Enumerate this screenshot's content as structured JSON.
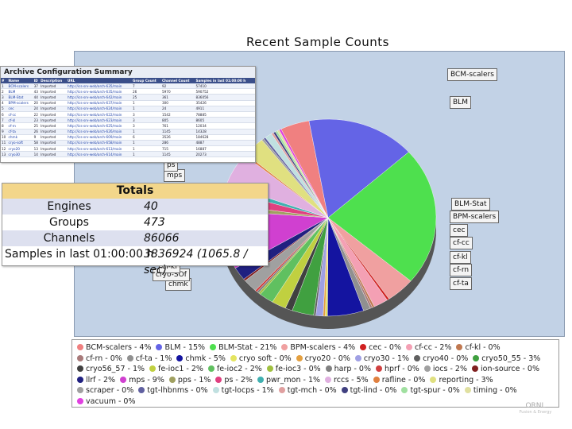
{
  "chart_data": {
    "type": "pie",
    "title": "Recent Sample Counts",
    "slices": [
      {
        "label": "BCM-scalers",
        "legend": "BCM-scalers - 4%",
        "value": 4,
        "color": "#f08080"
      },
      {
        "label": "BLM",
        "legend": "BLM - 15%",
        "value": 15,
        "color": "#6464e6"
      },
      {
        "label": "BLM-Stat",
        "legend": "BLM-Stat - 21%",
        "value": 21,
        "color": "#4ee04e"
      },
      {
        "label": "BPM-scalers",
        "legend": "BPM-scalers - 4%",
        "value": 4,
        "color": "#f0a0a0"
      },
      {
        "label": "cec",
        "legend": "cec - 0%",
        "value": 0.3,
        "color": "#d02020"
      },
      {
        "label": "cf-cc",
        "legend": "cf-cc - 2%",
        "value": 2,
        "color": "#f4a0b4"
      },
      {
        "label": "cf-kl",
        "legend": "cf-kl - 0%",
        "value": 0.3,
        "color": "#c07850"
      },
      {
        "label": "cf-rn",
        "legend": "cf-rn - 0%",
        "value": 0.3,
        "color": "#a87a7a"
      },
      {
        "label": "cf-ta",
        "legend": "cf-ta - 1%",
        "value": 1,
        "color": "#909090"
      },
      {
        "label": "chmk",
        "legend": "chmk - 5%",
        "value": 5,
        "color": "#1414a0"
      },
      {
        "label": "cryo soft",
        "legend": "cryo soft - 0%",
        "value": 0.3,
        "color": "#e4e460"
      },
      {
        "label": "cryo20",
        "legend": "cryo20 - 0%",
        "value": 0.3,
        "color": "#e4a040"
      },
      {
        "label": "cryo30",
        "legend": "cryo30 - 1%",
        "value": 1,
        "color": "#a0a0e4"
      },
      {
        "label": "cryo40",
        "legend": "cryo40 - 0%",
        "value": 0.3,
        "color": "#606060"
      },
      {
        "label": "cryo50_55",
        "legend": "cryo50_55 - 3%",
        "value": 3,
        "color": "#40a040"
      },
      {
        "label": "cryo56_57",
        "legend": "cryo56_57 - 1%",
        "value": 1,
        "color": "#404040"
      },
      {
        "label": "fe-ioc1",
        "legend": "fe-ioc1 - 2%",
        "value": 2,
        "color": "#c0d040"
      },
      {
        "label": "fe-ioc2",
        "legend": "fe-ioc2 - 2%",
        "value": 2,
        "color": "#60c060"
      },
      {
        "label": "fe-ioc3",
        "legend": "fe-ioc3 - 0%",
        "value": 0.3,
        "color": "#a0c040"
      },
      {
        "label": "harp",
        "legend": "harp - 0%",
        "value": 0.3,
        "color": "#808080"
      },
      {
        "label": "hprf",
        "legend": "hprf - 0%",
        "value": 0.3,
        "color": "#d04040"
      },
      {
        "label": "iocs",
        "legend": "iocs - 2%",
        "value": 2,
        "color": "#a0a0a0"
      },
      {
        "label": "ion-source",
        "legend": "ion-source - 0%",
        "value": 0.3,
        "color": "#802020"
      },
      {
        "label": "llrf",
        "legend": "llrf - 2%",
        "value": 2,
        "color": "#202080"
      },
      {
        "label": "mps",
        "legend": "mps - 9%",
        "value": 9,
        "color": "#d040d0"
      },
      {
        "label": "pps",
        "legend": "pps - 1%",
        "value": 1,
        "color": "#a0a060"
      },
      {
        "label": "ps",
        "legend": "ps - 2%",
        "value": 2,
        "color": "#e04080"
      },
      {
        "label": "pwr_mon",
        "legend": "pwr_mon - 1%",
        "value": 1,
        "color": "#40b0b0"
      },
      {
        "label": "rccs",
        "legend": "rccs - 5%",
        "value": 5,
        "color": "#e0b0e0"
      },
      {
        "label": "rafline",
        "legend": "rafline - 0%",
        "value": 0.3,
        "color": "#e08040"
      },
      {
        "label": "reporting",
        "legend": "reporting - 3%",
        "value": 3,
        "color": "#e0e080"
      },
      {
        "label": "scraper",
        "legend": "scraper - 0%",
        "value": 0.3,
        "color": "#a0a0a0"
      },
      {
        "label": "tgt-lhbnms",
        "legend": "tgt-lhbnms - 0%",
        "value": 0.3,
        "color": "#6060a0"
      },
      {
        "label": "tgt-locps",
        "legend": "tgt-locps - 1%",
        "value": 1,
        "color": "#c0e0e0"
      },
      {
        "label": "tgt-mch",
        "legend": "tgt-mch - 0%",
        "value": 0.3,
        "color": "#e0a0a0"
      },
      {
        "label": "tgt-lind",
        "legend": "tgt-lind - 0%",
        "value": 0.3,
        "color": "#404080"
      },
      {
        "label": "tgt-spur",
        "legend": "tgt-spur - 0%",
        "value": 0.3,
        "color": "#a0e0a0"
      },
      {
        "label": "timing",
        "legend": "timing - 0%",
        "value": 0.3,
        "color": "#e0e0a0"
      },
      {
        "label": "vacuum",
        "legend": "vacuum - 0%",
        "value": 0.3,
        "color": "#e040e0"
      }
    ],
    "callouts": [
      "BCM-scalers",
      "BLM",
      "BLM-Stat",
      "BPM-scalers",
      "cec",
      "cf-cc",
      "cf-kl",
      "cf-rn",
      "cf-ta",
      "chmk",
      "cryo-SOf",
      "cf-kl",
      "mps",
      "ps"
    ]
  },
  "config_summary": {
    "title": "Archive Configuration Summary",
    "columns": [
      "#",
      "Name",
      "ID",
      "Description",
      "URL",
      "Group Count",
      "Channel Count",
      "Samples in last 01:00:00 h"
    ],
    "rows": [
      [
        "1",
        "BCM-scalers",
        "37",
        "Imported",
        "http://ics-srv-web/arch-635/main",
        "7",
        "92",
        "57410"
      ],
      [
        "2",
        "BLM",
        "43",
        "Imported",
        "http://ics-srv-web/arch-635/main",
        "26",
        "5970",
        "590752"
      ],
      [
        "3",
        "BLM-Stat",
        "44",
        "Imported",
        "http://ics-srv-web/arch-642/main",
        "25",
        "361",
        "836056"
      ],
      [
        "4",
        "BPM-scalers",
        "20",
        "Imported",
        "http://ics-srv-web/arch-637/main",
        "1",
        "300",
        "35426"
      ],
      [
        "5",
        "cec",
        "24",
        "Imported",
        "http://ics-srv-web/arch-624/main",
        "1",
        "24",
        "4911"
      ],
      [
        "6",
        "cf-cc",
        "22",
        "Imported",
        "http://ics-srv-web/arch-622/main",
        "3",
        "1542",
        "78885"
      ],
      [
        "7",
        "cf-kl",
        "23",
        "Imported",
        "http://ics-srv-web/arch-623/main",
        "3",
        "805",
        "8605"
      ],
      [
        "8",
        "cf-rn",
        "25",
        "Imported",
        "http://ics-srv-web/arch-625/main",
        "3",
        "761",
        "12034"
      ],
      [
        "9",
        "cf-ta",
        "26",
        "Imported",
        "http://ics-srv-web/arch-626/main",
        "1",
        "1145",
        "14328"
      ],
      [
        "10",
        "chmk",
        "9",
        "Imported",
        "http://ics-srv-web/arch-609/main",
        "6",
        "3526",
        "184628"
      ],
      [
        "11",
        "cryo-soft",
        "58",
        "Imported",
        "http://ics-srv-web/arch-658/main",
        "1",
        "286",
        "4887"
      ],
      [
        "12",
        "cryo20",
        "13",
        "Imported",
        "http://ics-srv-web/arch-613/main",
        "1",
        "715",
        "16887"
      ],
      [
        "13",
        "cryo30",
        "14",
        "Imported",
        "http://ics-srv-web/arch-614/main",
        "1",
        "1145",
        "20273"
      ]
    ]
  },
  "totals": {
    "title": "Totals",
    "engines_label": "Engines",
    "engines_value": "40",
    "groups_label": "Groups",
    "groups_value": "473",
    "channels_label": "Channels",
    "channels_value": "86066",
    "samples_label": "Samples in last 01:00:00 h",
    "samples_value": "3836924 (1065.8 / sec)"
  },
  "logo": {
    "text": "ORNL",
    "sub": "Fusion & Energy"
  }
}
